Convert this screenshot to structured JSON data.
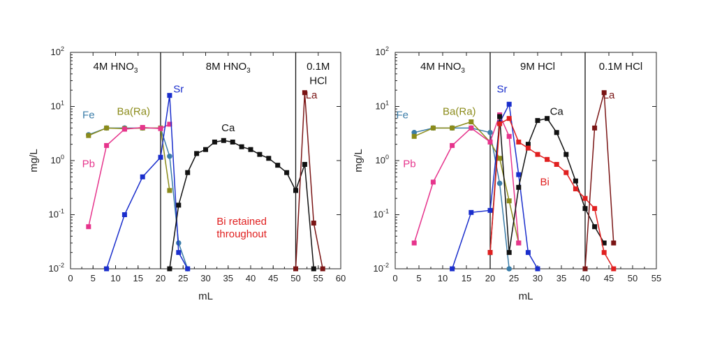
{
  "chart_data": [
    {
      "type": "line",
      "xlabel": "mL",
      "ylabel": "mg/L",
      "xlim": [
        0,
        60
      ],
      "ylim": [
        0.01,
        100
      ],
      "yscale": "log",
      "xticks": [
        0,
        5,
        10,
        15,
        20,
        25,
        30,
        35,
        40,
        45,
        50,
        55,
        60
      ],
      "yticks": [
        {
          "value": 0.01,
          "base": "10",
          "exp": "-2"
        },
        {
          "value": 0.1,
          "base": "10",
          "exp": "-1"
        },
        {
          "value": 1,
          "base": "10",
          "exp": "0"
        },
        {
          "value": 10,
          "base": "10",
          "exp": "1"
        },
        {
          "value": 100,
          "base": "10",
          "exp": "2"
        }
      ],
      "dividers": [
        20,
        50
      ],
      "regions": [
        {
          "label": "4M HNO",
          "sub": "3",
          "x_center": 10,
          "y": 55
        },
        {
          "label": "8M HNO",
          "sub": "3",
          "x_center": 35,
          "y": 55
        },
        {
          "label": "0.1M",
          "sub": "",
          "x_center": 55,
          "y": 55
        },
        {
          "label": "HCl",
          "sub": "",
          "x_center": 55,
          "y": 30
        }
      ],
      "annotations": [
        {
          "text": "Bi retained",
          "x": 38,
          "y": 0.065,
          "color": "#e02020"
        },
        {
          "text": "throughout",
          "x": 38,
          "y": 0.038,
          "color": "#e02020"
        }
      ],
      "series": [
        {
          "name": "Fe",
          "color": "#3a7ca8",
          "marker": "circle",
          "label_at": [
            4,
            6.0
          ],
          "x": [
            4,
            8,
            12,
            16,
            20,
            22,
            24,
            26
          ],
          "y": [
            3.0,
            4.0,
            4.0,
            4.0,
            4.0,
            1.2,
            0.03,
            0.01
          ]
        },
        {
          "name": "Ba(Ra)",
          "color": "#8b8b1a",
          "marker": "square",
          "label_at": [
            14,
            7.0
          ],
          "x": [
            4,
            8,
            12,
            16,
            20,
            22
          ],
          "y": [
            2.9,
            4.0,
            3.9,
            4.0,
            4.0,
            0.28
          ]
        },
        {
          "name": "Pb",
          "color": "#e6348c",
          "marker": "square",
          "label_at": [
            4,
            0.75
          ],
          "x": [
            4,
            8,
            12,
            16,
            20,
            22
          ],
          "y": [
            0.06,
            1.9,
            3.8,
            4.1,
            3.9,
            4.7
          ]
        },
        {
          "name": "Sr",
          "color": "#1a2ecc",
          "marker": "square",
          "label_at": [
            24,
            18
          ],
          "x": [
            8,
            12,
            16,
            20,
            22,
            24,
            26
          ],
          "y": [
            0.01,
            0.1,
            0.5,
            1.15,
            16,
            0.02,
            0.01
          ]
        },
        {
          "name": "Ca",
          "color": "#111111",
          "marker": "square",
          "label_at": [
            35,
            3.5
          ],
          "x": [
            22,
            24,
            26,
            28,
            30,
            32,
            34,
            36,
            38,
            40,
            42,
            44,
            46,
            48,
            50,
            52,
            54
          ],
          "y": [
            0.01,
            0.15,
            0.6,
            1.35,
            1.6,
            2.2,
            2.35,
            2.2,
            1.8,
            1.6,
            1.3,
            1.1,
            0.82,
            0.6,
            0.28,
            0.85,
            0.01
          ]
        },
        {
          "name": "La",
          "color": "#7a1515",
          "marker": "square",
          "label_at": [
            53.5,
            14
          ],
          "x": [
            50,
            52,
            54,
            56
          ],
          "y": [
            0.01,
            18,
            0.07,
            0.01
          ]
        }
      ]
    },
    {
      "type": "line",
      "xlabel": "mL",
      "ylabel": "mg/L",
      "xlim": [
        0,
        55
      ],
      "ylim": [
        0.01,
        100
      ],
      "yscale": "log",
      "xticks": [
        0,
        5,
        10,
        15,
        20,
        25,
        30,
        35,
        40,
        45,
        50,
        55
      ],
      "yticks": [
        {
          "value": 0.01,
          "base": "10",
          "exp": "-2"
        },
        {
          "value": 0.1,
          "base": "10",
          "exp": "-1"
        },
        {
          "value": 1,
          "base": "10",
          "exp": "0"
        },
        {
          "value": 10,
          "base": "10",
          "exp": "1"
        },
        {
          "value": 100,
          "base": "10",
          "exp": "2"
        }
      ],
      "dividers": [
        20,
        40
      ],
      "regions": [
        {
          "label": "4M HNO",
          "sub": "3",
          "x_center": 10,
          "y": 55
        },
        {
          "label": "9M HCl",
          "sub": "",
          "x_center": 30,
          "y": 55
        },
        {
          "label": "0.1M HCl",
          "sub": "",
          "x_center": 47.5,
          "y": 55
        }
      ],
      "annotations": [],
      "series": [
        {
          "name": "Fe",
          "color": "#3a7ca8",
          "marker": "circle",
          "label_at": [
            1.5,
            6.0
          ],
          "x": [
            4,
            8,
            12,
            16,
            20,
            22,
            24
          ],
          "y": [
            3.3,
            4.0,
            4.0,
            4.0,
            3.3,
            0.38,
            0.01
          ]
        },
        {
          "name": "Ba(Ra)",
          "color": "#8b8b1a",
          "marker": "square",
          "label_at": [
            13.5,
            7.0
          ],
          "x": [
            4,
            8,
            12,
            16,
            20,
            22,
            24,
            26
          ],
          "y": [
            2.8,
            4.0,
            4.0,
            5.2,
            2.2,
            1.1,
            0.18,
            0.03
          ]
        },
        {
          "name": "Pb",
          "color": "#e6348c",
          "marker": "square",
          "label_at": [
            3,
            0.75
          ],
          "x": [
            4,
            8,
            12,
            16,
            20,
            22,
            24,
            26
          ],
          "y": [
            0.03,
            0.4,
            1.9,
            4.0,
            2.2,
            7.0,
            2.8,
            0.03
          ]
        },
        {
          "name": "Sr",
          "color": "#1a2ecc",
          "marker": "square",
          "label_at": [
            22.5,
            18
          ],
          "x": [
            12,
            16,
            20,
            22,
            24,
            26,
            28,
            30
          ],
          "y": [
            0.01,
            0.11,
            0.12,
            5.0,
            11,
            0.55,
            0.02,
            0.01
          ]
        },
        {
          "name": "Ca",
          "color": "#111111",
          "marker": "square",
          "label_at": [
            34,
            7.0
          ],
          "x": [
            20,
            22,
            24,
            26,
            28,
            30,
            32,
            34,
            36,
            38,
            40,
            42,
            44
          ],
          "y": [
            0.02,
            6.5,
            0.02,
            0.32,
            2.0,
            5.5,
            6.0,
            3.3,
            1.3,
            0.42,
            0.13,
            0.06,
            0.03
          ]
        },
        {
          "name": "Bi",
          "color": "#e02020",
          "marker": "square",
          "label_at": [
            31.5,
            0.35
          ],
          "x": [
            20,
            22,
            24,
            26,
            28,
            30,
            32,
            34,
            36,
            38,
            40,
            42,
            44,
            46
          ],
          "y": [
            0.02,
            4.8,
            6.0,
            2.2,
            1.7,
            1.3,
            1.05,
            0.85,
            0.6,
            0.3,
            0.2,
            0.13,
            0.02,
            0.01
          ]
        },
        {
          "name": "La",
          "color": "#7a1515",
          "marker": "square",
          "label_at": [
            45,
            14
          ],
          "x": [
            40,
            42,
            44,
            46
          ],
          "y": [
            0.01,
            4.0,
            18,
            0.03
          ]
        }
      ]
    }
  ]
}
